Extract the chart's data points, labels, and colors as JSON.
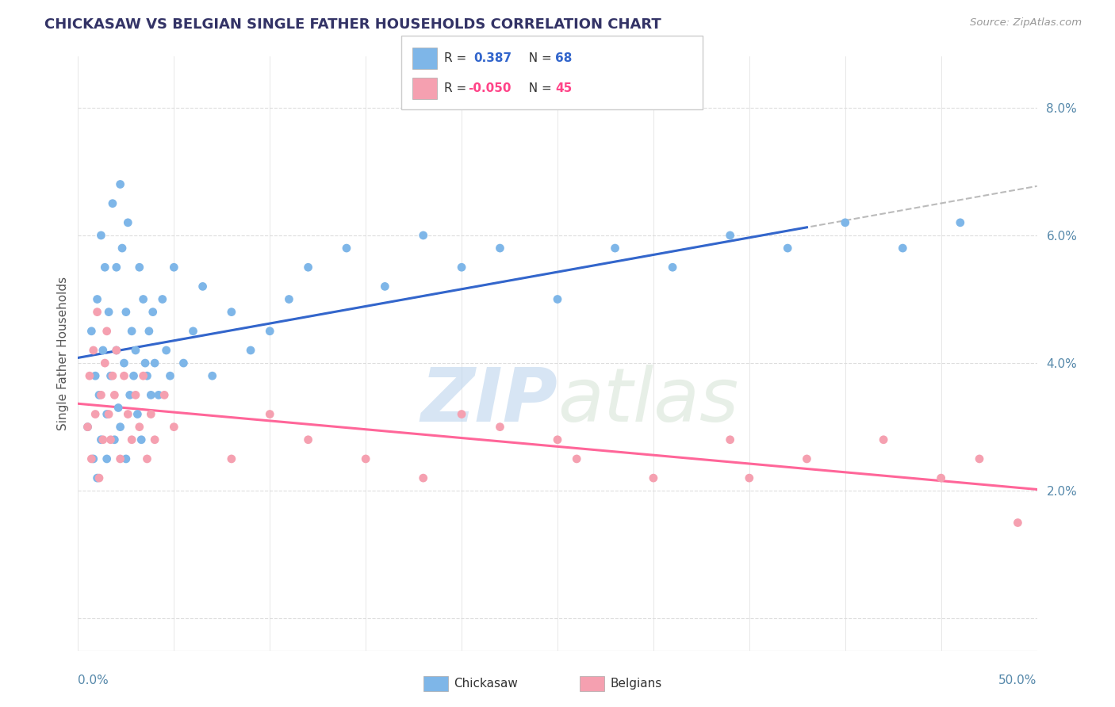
{
  "title": "CHICKASAW VS BELGIAN SINGLE FATHER HOUSEHOLDS CORRELATION CHART",
  "source": "Source: ZipAtlas.com",
  "ylabel": "Single Father Households",
  "xlim": [
    0.0,
    0.5
  ],
  "ylim": [
    -0.005,
    0.088
  ],
  "yticks": [
    0.0,
    0.02,
    0.04,
    0.06,
    0.08
  ],
  "ytick_labels": [
    "",
    "2.0%",
    "4.0%",
    "6.0%",
    "8.0%"
  ],
  "blue_color": "#7EB6E8",
  "pink_color": "#F5A0B0",
  "trend_blue": "#3366CC",
  "trend_pink": "#FF6699",
  "trend_dash_color": "#AAAAAA",
  "watermark_zip": "ZIP",
  "watermark_atlas": "atlas",
  "background_color": "#FFFFFF",
  "grid_color": "#DDDDDD",
  "blue_x": [
    0.005,
    0.007,
    0.008,
    0.009,
    0.01,
    0.01,
    0.011,
    0.012,
    0.012,
    0.013,
    0.014,
    0.015,
    0.015,
    0.016,
    0.017,
    0.018,
    0.019,
    0.02,
    0.02,
    0.021,
    0.022,
    0.022,
    0.023,
    0.024,
    0.025,
    0.025,
    0.026,
    0.027,
    0.028,
    0.029,
    0.03,
    0.031,
    0.032,
    0.033,
    0.034,
    0.035,
    0.036,
    0.037,
    0.038,
    0.039,
    0.04,
    0.042,
    0.044,
    0.046,
    0.048,
    0.05,
    0.055,
    0.06,
    0.065,
    0.07,
    0.08,
    0.09,
    0.1,
    0.11,
    0.12,
    0.14,
    0.16,
    0.18,
    0.2,
    0.22,
    0.25,
    0.28,
    0.31,
    0.34,
    0.37,
    0.4,
    0.43,
    0.46
  ],
  "blue_y": [
    0.03,
    0.045,
    0.025,
    0.038,
    0.05,
    0.022,
    0.035,
    0.06,
    0.028,
    0.042,
    0.055,
    0.032,
    0.025,
    0.048,
    0.038,
    0.065,
    0.028,
    0.042,
    0.055,
    0.033,
    0.068,
    0.03,
    0.058,
    0.04,
    0.025,
    0.048,
    0.062,
    0.035,
    0.045,
    0.038,
    0.042,
    0.032,
    0.055,
    0.028,
    0.05,
    0.04,
    0.038,
    0.045,
    0.035,
    0.048,
    0.04,
    0.035,
    0.05,
    0.042,
    0.038,
    0.055,
    0.04,
    0.045,
    0.052,
    0.038,
    0.048,
    0.042,
    0.045,
    0.05,
    0.055,
    0.058,
    0.052,
    0.06,
    0.055,
    0.058,
    0.05,
    0.058,
    0.055,
    0.06,
    0.058,
    0.062,
    0.058,
    0.062
  ],
  "pink_x": [
    0.005,
    0.006,
    0.007,
    0.008,
    0.009,
    0.01,
    0.011,
    0.012,
    0.013,
    0.014,
    0.015,
    0.016,
    0.017,
    0.018,
    0.019,
    0.02,
    0.022,
    0.024,
    0.026,
    0.028,
    0.03,
    0.032,
    0.034,
    0.036,
    0.038,
    0.04,
    0.045,
    0.05,
    0.08,
    0.1,
    0.12,
    0.15,
    0.18,
    0.22,
    0.26,
    0.3,
    0.34,
    0.38,
    0.42,
    0.45,
    0.47,
    0.49,
    0.2,
    0.25,
    0.35
  ],
  "pink_y": [
    0.03,
    0.038,
    0.025,
    0.042,
    0.032,
    0.048,
    0.022,
    0.035,
    0.028,
    0.04,
    0.045,
    0.032,
    0.028,
    0.038,
    0.035,
    0.042,
    0.025,
    0.038,
    0.032,
    0.028,
    0.035,
    0.03,
    0.038,
    0.025,
    0.032,
    0.028,
    0.035,
    0.03,
    0.025,
    0.032,
    0.028,
    0.025,
    0.022,
    0.03,
    0.025,
    0.022,
    0.028,
    0.025,
    0.028,
    0.022,
    0.025,
    0.015,
    0.032,
    0.028,
    0.022
  ]
}
